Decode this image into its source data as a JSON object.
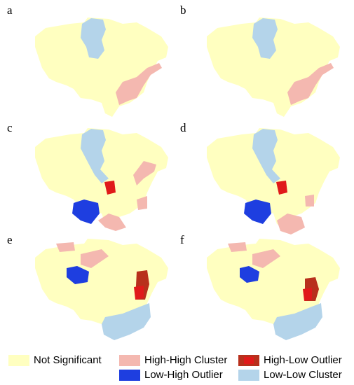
{
  "panels": [
    {
      "label": "a"
    },
    {
      "label": "b"
    },
    {
      "label": "c"
    },
    {
      "label": "d"
    },
    {
      "label": "e"
    },
    {
      "label": "f"
    }
  ],
  "legend": [
    {
      "label": "Not Significant",
      "color": "#ffffc0"
    },
    {
      "label": "High-High Cluster",
      "color": "#f4b8b0"
    },
    {
      "label": "High-Low Outlier",
      "color": "#b8301c"
    },
    {
      "label": "Low-High Outlier",
      "color": "#1e3ee0"
    },
    {
      "label": "Low-Low Cluster",
      "color": "#b4d4ea"
    }
  ]
}
